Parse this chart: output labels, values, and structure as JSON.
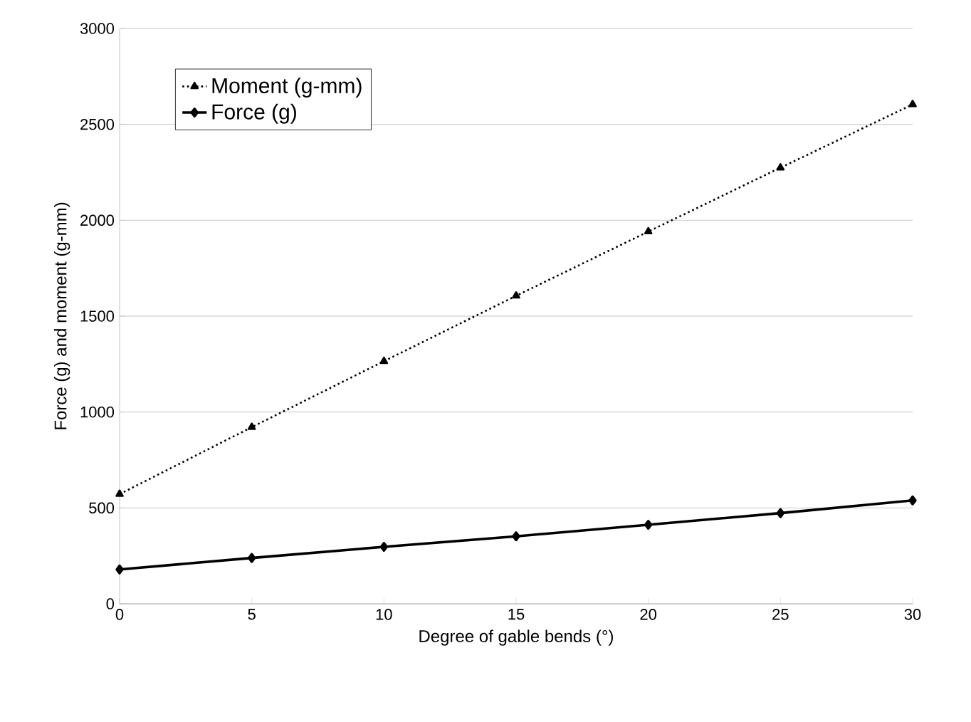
{
  "chart_data": {
    "type": "line",
    "xlabel": "Degree of gable bends (°)",
    "ylabel": "Force (g) and moment (g-mm)",
    "x": [
      0,
      5,
      10,
      15,
      20,
      25,
      30
    ],
    "series": [
      {
        "name": "Moment (g-mm)",
        "color": "#000000",
        "marker": "triangle",
        "line_style": "dotted",
        "values": [
          572,
          921,
          1265,
          1606,
          1941,
          2274,
          2604
        ]
      },
      {
        "name": "Force (g)",
        "color": "#000000",
        "marker": "diamond",
        "line_style": "solid",
        "values": [
          179,
          239,
          297,
          352,
          412,
          473,
          539
        ]
      }
    ],
    "xlim": [
      0,
      30
    ],
    "xticks": [
      0,
      5,
      10,
      15,
      20,
      25,
      30
    ],
    "ylim": [
      0,
      3000
    ],
    "yticks": [
      0,
      500,
      1000,
      1500,
      2000,
      2500,
      3000
    ],
    "grid": "y",
    "legend": "top left"
  }
}
